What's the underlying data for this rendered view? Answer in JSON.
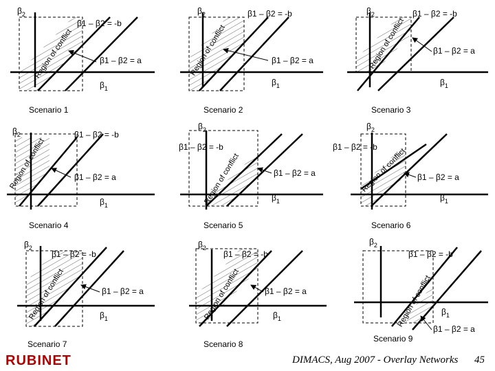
{
  "labels": {
    "beta2": "β2",
    "beta1": "β1",
    "minus_b": "β1 – β2 = -b",
    "plus_a": "β1 – β2 = a",
    "region": "Region of conflict"
  },
  "scenarios": [
    {
      "name": "Scenario 1"
    },
    {
      "name": "Scenario 2"
    },
    {
      "name": "Scenario 3"
    },
    {
      "name": "Scenario 4"
    },
    {
      "name": "Scenario 5"
    },
    {
      "name": "Scenario 6"
    },
    {
      "name": "Scenario 7"
    },
    {
      "name": "Scenario 8"
    },
    {
      "name": "Scenario 9"
    }
  ],
  "footer": {
    "text": "DIMACS, Aug 2007 - Overlay Networks",
    "page": "45",
    "logo": "RUBINET"
  },
  "colors": {
    "logo": "#b00000",
    "line": "#000000",
    "hatch": "#666666"
  }
}
